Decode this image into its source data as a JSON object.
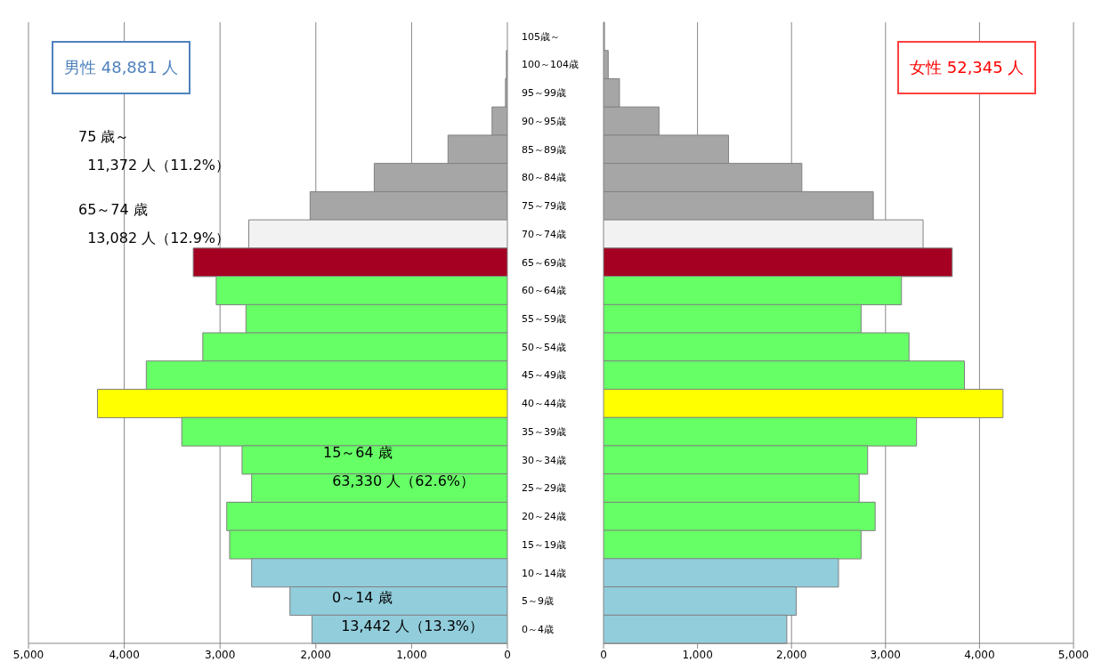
{
  "chart_data": [
    {
      "type": "bar",
      "orientation": "horizontal",
      "title": "男性 48,881 人",
      "values": [
        0,
        10,
        20,
        160,
        620,
        1390,
        2060,
        2700,
        3280,
        3040,
        2730,
        3180,
        3770,
        4280,
        3400,
        2770,
        2670,
        2930,
        2900,
        2670,
        2270,
        2040
      ],
      "colors": [
        "#a6a6a6",
        "#a6a6a6",
        "#a6a6a6",
        "#a6a6a6",
        "#a6a6a6",
        "#a6a6a6",
        "#a6a6a6",
        "#f2f2f2",
        "#a50021",
        "#66ff66",
        "#66ff66",
        "#66ff66",
        "#66ff66",
        "#ffff00",
        "#66ff66",
        "#66ff66",
        "#66ff66",
        "#66ff66",
        "#66ff66",
        "#92cddc",
        "#92cddc",
        "#92cddc"
      ],
      "xlim": [
        5000,
        0
      ],
      "xticks": [
        {
          "value": 5000,
          "label": "5,000"
        },
        {
          "value": 4000,
          "label": "4,000"
        },
        {
          "value": 3000,
          "label": "3,000"
        },
        {
          "value": 2000,
          "label": "2,000"
        },
        {
          "value": 1000,
          "label": "1,000"
        },
        0
      ],
      "grid": "x",
      "tick_labels": "x",
      "annotations": [
        "75 歳～\n  11,372 人（11.2%）",
        "65～74 歳\n  13,082 人（12.9%）",
        "15～64 歳\n  63,330 人（62.6%）",
        "0～14 歳\n  13,442 人（13.3%）"
      ]
    },
    {
      "type": "bar",
      "orientation": "horizontal",
      "title": "女性 52,345 人",
      "categories": [
        "105歳～",
        "100～104歳",
        "95～99歳",
        "90～95歳",
        "85～89歳",
        "80～84歳",
        "75～79歳",
        "70～74歳",
        "65～69歳",
        "60～64歳",
        "55～59歳",
        "50～54歳",
        "45～49歳",
        "40～44歳",
        "35～39歳",
        "30～34歳",
        "25～29歳",
        "20～24歳",
        "15～19歳",
        "10～14歳",
        "5～9歳",
        "0～4歳"
      ],
      "values": [
        10,
        50,
        170,
        590,
        1330,
        2110,
        2870,
        3400,
        3710,
        3170,
        2740,
        3250,
        3840,
        4250,
        3330,
        2810,
        2720,
        2890,
        2740,
        2500,
        2050,
        1950
      ],
      "colors": [
        "#a6a6a6",
        "#a6a6a6",
        "#a6a6a6",
        "#a6a6a6",
        "#a6a6a6",
        "#a6a6a6",
        "#a6a6a6",
        "#f2f2f2",
        "#a50021",
        "#66ff66",
        "#66ff66",
        "#66ff66",
        "#66ff66",
        "#ffff00",
        "#66ff66",
        "#66ff66",
        "#66ff66",
        "#66ff66",
        "#66ff66",
        "#92cddc",
        "#92cddc",
        "#92cddc"
      ],
      "xlim": [
        0,
        5000
      ],
      "xticks": [
        0,
        {
          "value": 1000,
          "label": "1,000"
        },
        {
          "value": 2000,
          "label": "2,000"
        },
        {
          "value": 3000,
          "label": "3,000"
        },
        {
          "value": 4000,
          "label": "4,000"
        },
        {
          "value": 5000,
          "label": "5,000"
        }
      ],
      "grid": "x"
    }
  ]
}
